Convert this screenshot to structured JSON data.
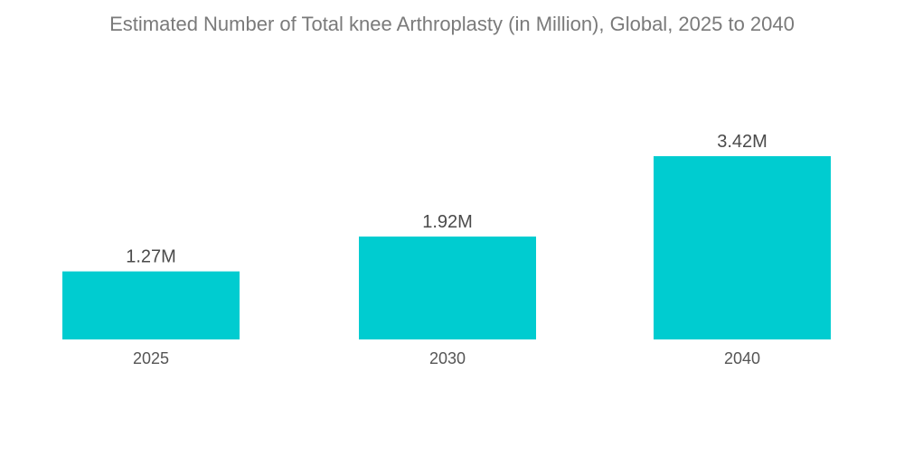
{
  "chart_data": {
    "type": "bar",
    "title": "Estimated Number of Total knee Arthroplasty (in Million), Global, 2025 to 2040",
    "categories": [
      "2025",
      "2030",
      "2040"
    ],
    "values": [
      1.27,
      1.92,
      3.42
    ],
    "data_labels": [
      "1.27M",
      "1.92M",
      "3.42M"
    ],
    "xlabel": "",
    "ylabel": "",
    "ylim": [
      0,
      3.42
    ],
    "grid": false,
    "legend": "none",
    "bar_color": "#00ccd0"
  }
}
